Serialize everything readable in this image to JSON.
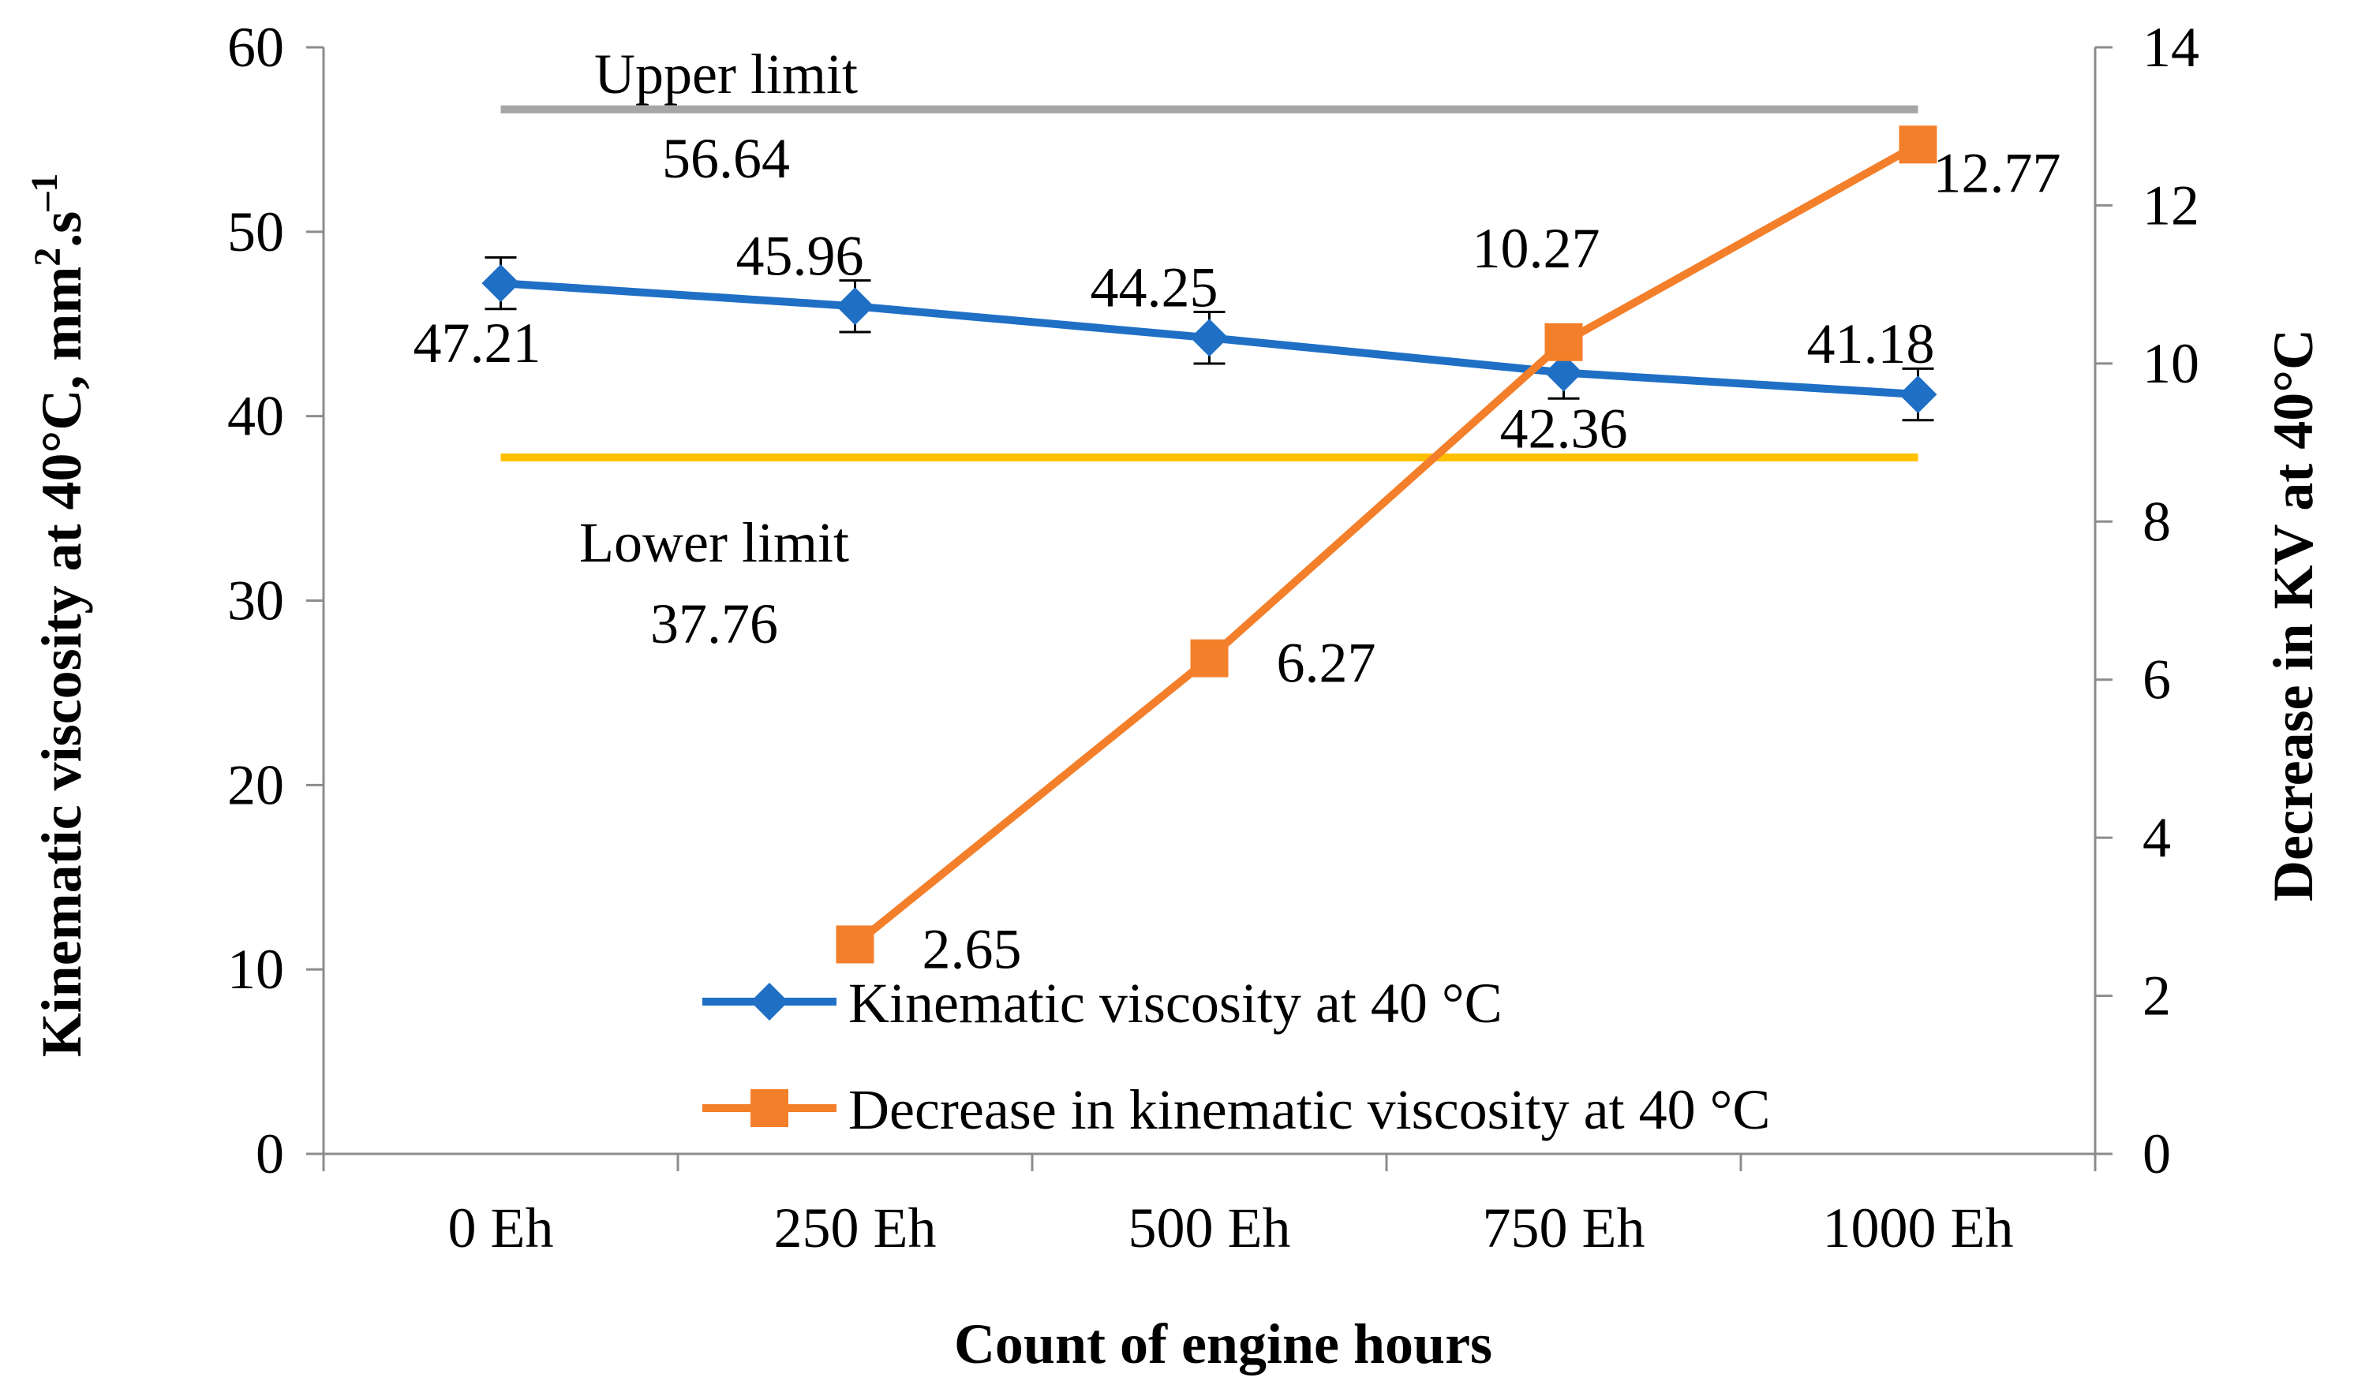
{
  "chart_data": {
    "type": "line",
    "categories": [
      "0 Eh",
      "250 Eh",
      "500 Eh",
      "750 Eh",
      "1000 Eh"
    ],
    "xlabel": "Count of engine hours",
    "ylabel_left": "Kinematic viscosity at 40°C, mm²·s⁻¹",
    "ylabel_right": "Decrease in KV at 40°C",
    "ylim_left": [
      0,
      60
    ],
    "yticks_left": [
      0,
      10,
      20,
      30,
      40,
      50,
      60
    ],
    "ylim_right": [
      0,
      14
    ],
    "yticks_right": [
      0,
      2,
      4,
      6,
      8,
      10,
      12,
      14
    ],
    "series": [
      {
        "name": "Kinematic viscosity at 40 °C",
        "axis": "left",
        "marker": "diamond",
        "color": "#1f6fc5",
        "values": [
          47.21,
          45.96,
          44.25,
          42.36,
          41.18
        ],
        "labels": [
          "47.21",
          "45.96",
          "44.25",
          "42.36",
          "41.18"
        ],
        "error": [
          1.4,
          1.4,
          1.4,
          1.4,
          1.4
        ]
      },
      {
        "name": "Decrease in kinematic viscosity at 40 °C",
        "axis": "right",
        "marker": "square",
        "color": "#f47f2a",
        "values": [
          null,
          2.65,
          6.27,
          10.27,
          12.77
        ],
        "labels": [
          "",
          "2.65",
          "6.27",
          "10.27",
          "12.77"
        ]
      }
    ],
    "limits": [
      {
        "name": "Upper limit",
        "value": 56.64,
        "label": "Upper limit",
        "value_label": "56.64",
        "color": "#a6a6a6"
      },
      {
        "name": "Lower limit",
        "value": 37.76,
        "label": "Lower limit",
        "value_label": "37.76",
        "color": "#ffc000"
      }
    ]
  }
}
